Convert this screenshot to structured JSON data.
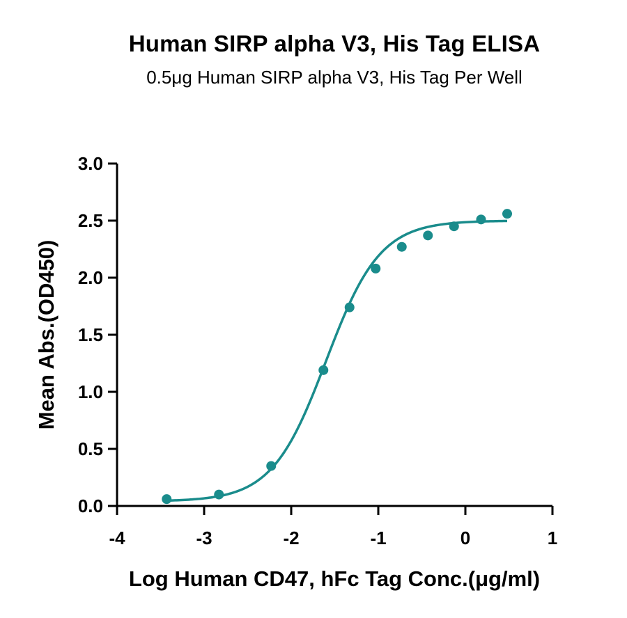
{
  "chart_data": {
    "type": "scatter",
    "title": "Human SIRP alpha V3, His Tag ELISA",
    "subtitle": "0.5μg Human SIRP alpha V3, His Tag Per Well",
    "xlabel": "Log Human CD47, hFc Tag Conc.(μg/ml)",
    "ylabel": "Mean Abs.(OD450)",
    "xlim": [
      -4,
      1
    ],
    "ylim": [
      0,
      3
    ],
    "xticks": [
      -4,
      -3,
      -2,
      -1,
      0,
      1
    ],
    "xtick_labels": [
      "-4",
      "-3",
      "-2",
      "-1",
      "0",
      "1"
    ],
    "yticks": [
      0,
      0.5,
      1,
      1.5,
      2,
      2.5,
      3
    ],
    "ytick_labels": [
      "0.0",
      "0.5",
      "1.0",
      "1.5",
      "2.0",
      "2.5",
      "3.0"
    ],
    "grid": false,
    "series": [
      {
        "points": [
          {
            "x": -3.43,
            "y": 0.06
          },
          {
            "x": -2.83,
            "y": 0.1
          },
          {
            "x": -2.23,
            "y": 0.35
          },
          {
            "x": -1.63,
            "y": 1.19
          },
          {
            "x": -1.33,
            "y": 1.74
          },
          {
            "x": -1.03,
            "y": 2.08
          },
          {
            "x": -0.73,
            "y": 2.27
          },
          {
            "x": -0.43,
            "y": 2.37
          },
          {
            "x": -0.13,
            "y": 2.45
          },
          {
            "x": 0.18,
            "y": 2.51
          },
          {
            "x": 0.48,
            "y": 2.56
          }
        ],
        "fit": {
          "model": "4PL",
          "bottom": 0.04,
          "top": 2.5,
          "logEC50": -1.6,
          "hill": 1.4,
          "x_range": [
            -3.43,
            0.48
          ]
        },
        "color": "#1a8c8c"
      }
    ]
  }
}
